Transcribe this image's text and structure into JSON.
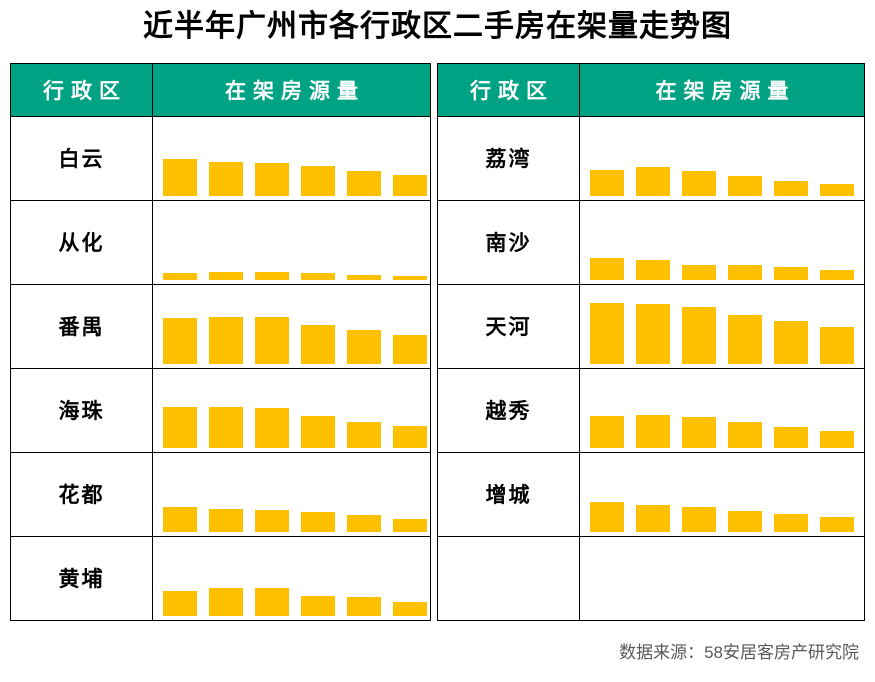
{
  "title": "近半年广州市各行政区二手房在架量走势图",
  "table": {
    "header": {
      "district_label": "行政区",
      "volume_label": "在架房源量"
    },
    "left_column_districts": [
      "白云",
      "从化",
      "番禺",
      "海珠",
      "花都",
      "黄埔"
    ],
    "right_column_districts": [
      "荔湾",
      "南沙",
      "天河",
      "越秀",
      "增城",
      ""
    ]
  },
  "footer": {
    "source": "数据来源：58安居客房产研究院"
  },
  "colors": {
    "header_bg": "#00A284",
    "header_text": "#FFFFFF",
    "bar": "#FFC000",
    "border": "#000000",
    "title_text": "#000000",
    "footer_text": "#595959"
  },
  "chart_data": {
    "type": "bar",
    "title": "近半年广州市各行政区二手房在架量走势图",
    "periods": 6,
    "axis_labels_shown": false,
    "unit": "relative bar height in px (no numeric axis shown in image)",
    "legend_position": "none",
    "grid": false,
    "series": [
      {
        "name": "白云",
        "values": [
          37,
          34,
          33,
          30,
          25,
          21
        ]
      },
      {
        "name": "从化",
        "values": [
          7,
          8,
          8,
          7,
          5,
          4
        ]
      },
      {
        "name": "番禺",
        "values": [
          46,
          47,
          47,
          39,
          34,
          29
        ]
      },
      {
        "name": "海珠",
        "values": [
          41,
          41,
          40,
          32,
          26,
          22
        ]
      },
      {
        "name": "花都",
        "values": [
          25,
          23,
          22,
          20,
          17,
          13
        ]
      },
      {
        "name": "黄埔",
        "values": [
          25,
          28,
          28,
          20,
          19,
          14
        ]
      },
      {
        "name": "荔湾",
        "values": [
          26,
          29,
          25,
          20,
          15,
          12
        ]
      },
      {
        "name": "南沙",
        "values": [
          22,
          20,
          15,
          15,
          13,
          10
        ]
      },
      {
        "name": "天河",
        "values": [
          61,
          60,
          57,
          49,
          43,
          37
        ]
      },
      {
        "name": "越秀",
        "values": [
          32,
          33,
          31,
          26,
          21,
          17
        ]
      },
      {
        "name": "增城",
        "values": [
          30,
          27,
          25,
          21,
          18,
          15
        ]
      }
    ]
  }
}
